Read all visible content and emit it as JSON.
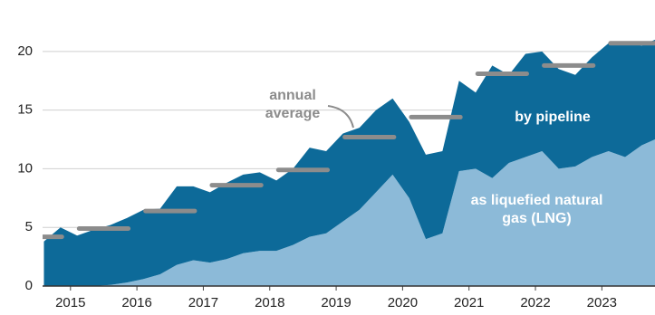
{
  "chart_data": {
    "type": "stacked-area",
    "x": [
      2014.6,
      2014.85,
      2015.1,
      2015.35,
      2015.6,
      2015.85,
      2016.1,
      2016.35,
      2016.6,
      2016.85,
      2017.1,
      2017.35,
      2017.6,
      2017.85,
      2018.1,
      2018.35,
      2018.6,
      2018.85,
      2019.1,
      2019.35,
      2019.6,
      2019.85,
      2020.1,
      2020.35,
      2020.6,
      2020.85,
      2021.1,
      2021.35,
      2021.6,
      2021.85,
      2022.1,
      2022.35,
      2022.6,
      2022.85,
      2023.1,
      2023.35,
      2023.6,
      2023.8
    ],
    "series": [
      {
        "name": "as liquefied natural gas (LNG)",
        "color": "#8cbad8",
        "values": [
          0,
          0,
          0,
          0,
          0.1,
          0.3,
          0.6,
          1.0,
          1.8,
          2.2,
          2.0,
          2.3,
          2.8,
          3.0,
          3.0,
          3.5,
          4.2,
          4.5,
          5.5,
          6.5,
          8.0,
          9.5,
          7.5,
          4.0,
          4.5,
          9.8,
          10.0,
          9.2,
          10.5,
          11.0,
          11.5,
          10.0,
          10.2,
          11.0,
          11.5,
          11.0,
          12.0,
          12.5
        ]
      },
      {
        "name": "by pipeline",
        "color": "#0d6a99",
        "values": [
          3.8,
          5.0,
          4.3,
          4.8,
          5.1,
          5.5,
          5.9,
          5.6,
          6.7,
          6.3,
          6.0,
          6.5,
          6.7,
          6.7,
          6.0,
          6.5,
          7.6,
          7.0,
          7.5,
          7.0,
          7.0,
          6.5,
          6.5,
          7.2,
          7.0,
          7.7,
          6.5,
          9.6,
          7.5,
          8.8,
          8.5,
          8.5,
          7.8,
          8.5,
          9.2,
          9.8,
          8.5,
          8.5
        ]
      }
    ],
    "annual_average": {
      "x": [
        2014,
        2015,
        2016,
        2017,
        2018,
        2019,
        2020,
        2021,
        2022,
        2023
      ],
      "values": [
        4.2,
        4.9,
        6.4,
        8.6,
        9.9,
        12.7,
        14.4,
        18.1,
        18.8,
        20.7
      ],
      "color": "#8c8c8c"
    },
    "annotation": "annual average",
    "xlim": [
      2014.58,
      2023.8
    ],
    "xticks": [
      2015,
      2016,
      2017,
      2018,
      2019,
      2020,
      2021,
      2022,
      2023
    ],
    "ylim": [
      0,
      23
    ],
    "yticks": [
      0,
      5,
      10,
      15,
      20
    ],
    "grid": true
  }
}
